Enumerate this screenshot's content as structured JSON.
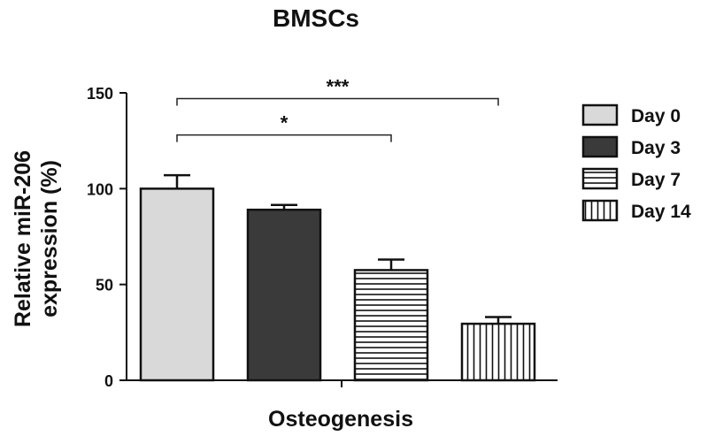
{
  "chart_data": {
    "type": "bar",
    "title": "BMSCs",
    "xlabel": "Osteogenesis",
    "ylabel": [
      "Relative miR-206",
      "expression (%)"
    ],
    "ylim": [
      0,
      150
    ],
    "yticks": [
      0,
      50,
      100,
      150
    ],
    "grid": false,
    "legend_position": "right",
    "series": [
      {
        "name": "Day 0",
        "value": 100,
        "error": 7,
        "fill": "#d9d9d9",
        "pattern": "solid"
      },
      {
        "name": "Day 3",
        "value": 89,
        "error": 2.5,
        "fill": "#3a3a3a",
        "pattern": "solid"
      },
      {
        "name": "Day 7",
        "value": 57.5,
        "error": 5.5,
        "fill": "#ffffff",
        "pattern": "horizontal-lines"
      },
      {
        "name": "Day 14",
        "value": 29.5,
        "error": 3.5,
        "fill": "#ffffff",
        "pattern": "vertical-lines"
      }
    ],
    "significance": [
      {
        "from": "Day 0",
        "to": "Day 7",
        "label": "*",
        "y": 128
      },
      {
        "from": "Day 0",
        "to": "Day 14",
        "label": "***",
        "y": 147
      }
    ]
  }
}
